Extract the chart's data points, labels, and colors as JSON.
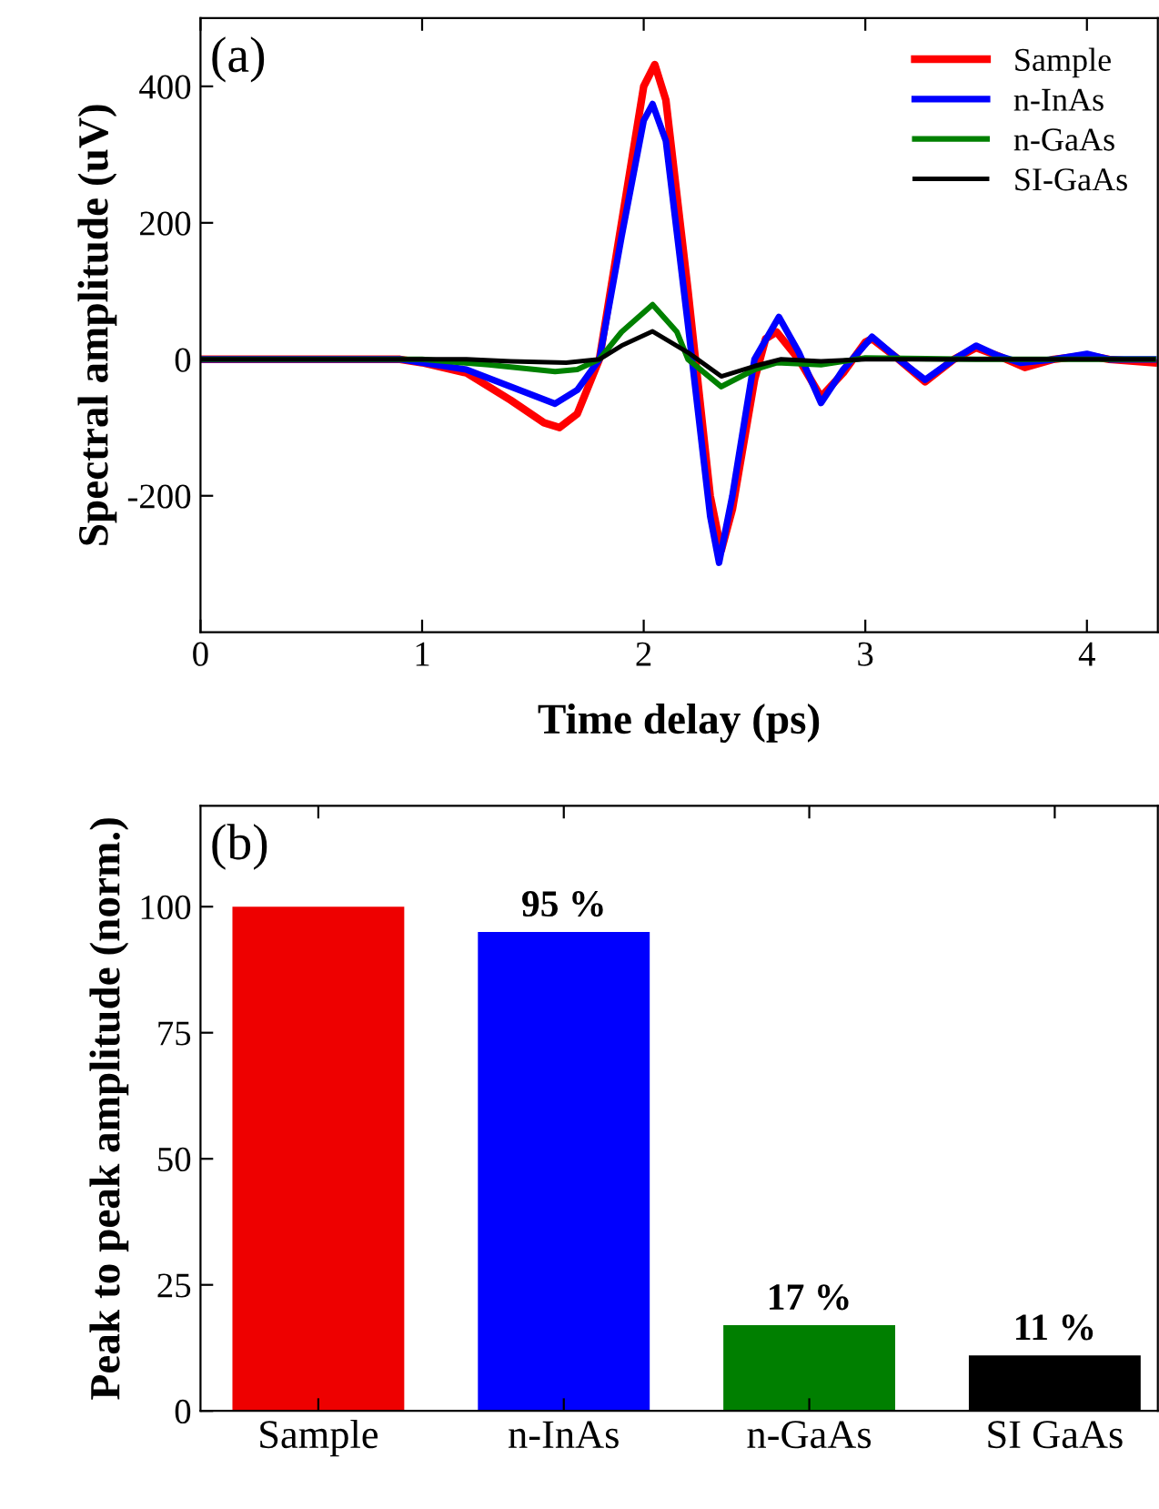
{
  "chart_data": [
    {
      "type": "line",
      "xlabel": "Time delay (ps)",
      "ylabel": "Spectral amplitude (uV)",
      "xlim": [
        0,
        4.32
      ],
      "xticks": [
        0,
        1,
        2,
        3,
        4
      ],
      "ylim": [
        -400,
        500
      ],
      "yticks": [
        -200,
        0,
        200,
        400
      ],
      "legend": "top right",
      "grid": false,
      "annotations": [
        "(a)"
      ],
      "series": [
        {
          "name": "Sample",
          "color": "#ff0000",
          "x": [
            0,
            0.9,
            1.0,
            1.2,
            1.4,
            1.55,
            1.62,
            1.7,
            1.8,
            1.9,
            2.0,
            2.05,
            2.1,
            2.2,
            2.25,
            2.3,
            2.35,
            2.4,
            2.5,
            2.55,
            2.6,
            2.7,
            2.8,
            2.9,
            3.0,
            3.03,
            3.15,
            3.27,
            3.4,
            3.5,
            3.6,
            3.72,
            3.85,
            4.0,
            4.1,
            4.3
          ],
          "values": [
            0,
            0,
            -5,
            -20,
            -60,
            -93,
            -100,
            -80,
            0,
            200,
            400,
            432,
            380,
            100,
            -50,
            -200,
            -280,
            -220,
            -30,
            30,
            40,
            0,
            -55,
            -20,
            25,
            30,
            0,
            -33,
            0,
            17,
            5,
            -12,
            0,
            6,
            0,
            -5
          ]
        },
        {
          "name": "n-InAs",
          "color": "#0000ff",
          "x": [
            0,
            0.9,
            1.2,
            1.4,
            1.6,
            1.7,
            1.8,
            1.9,
            2.0,
            2.04,
            2.1,
            2.2,
            2.3,
            2.34,
            2.4,
            2.5,
            2.61,
            2.7,
            2.8,
            2.9,
            3.03,
            3.15,
            3.27,
            3.4,
            3.5,
            3.6,
            3.7,
            3.85,
            4.0,
            4.1,
            4.3
          ],
          "values": [
            0,
            0,
            -15,
            -40,
            -65,
            -45,
            0,
            180,
            350,
            374,
            320,
            50,
            -230,
            -298,
            -200,
            0,
            62,
            10,
            -64,
            -15,
            33,
            0,
            -30,
            0,
            20,
            5,
            -5,
            0,
            8,
            0,
            0
          ]
        },
        {
          "name": "n-GaAs",
          "color": "#008000",
          "x": [
            0,
            1.0,
            1.3,
            1.6,
            1.7,
            1.8,
            1.9,
            2.04,
            2.15,
            2.2,
            2.35,
            2.5,
            2.6,
            2.8,
            3.0,
            3.5,
            4.3
          ],
          "values": [
            0,
            0,
            -8,
            -18,
            -15,
            0,
            40,
            80,
            40,
            0,
            -40,
            -15,
            -5,
            -8,
            2,
            0,
            0
          ]
        },
        {
          "name": "SI-GaAs",
          "color": "#000000",
          "x": [
            0,
            1.2,
            1.4,
            1.65,
            1.8,
            1.9,
            2.04,
            2.2,
            2.35,
            2.5,
            2.62,
            2.8,
            3.0,
            4.3
          ],
          "values": [
            0,
            0,
            -3,
            -5,
            0,
            20,
            41,
            10,
            -25,
            -10,
            0,
            -3,
            0,
            0
          ]
        }
      ]
    },
    {
      "type": "bar",
      "ylabel": "Peak to peak amplitude (norm.)",
      "categories": [
        "Sample",
        "n-InAs",
        "n-GaAs",
        "SI GaAs"
      ],
      "values": [
        100,
        95,
        17,
        11
      ],
      "colors": [
        "#ee0000",
        "#0000ff",
        "#007f00",
        "#000000"
      ],
      "value_labels": [
        null,
        "95 %",
        "17 %",
        "11 %"
      ],
      "ylim": [
        0,
        120
      ],
      "yticks": [
        0,
        25,
        50,
        75,
        100
      ],
      "grid": false,
      "annotations": [
        "(b)"
      ]
    }
  ]
}
